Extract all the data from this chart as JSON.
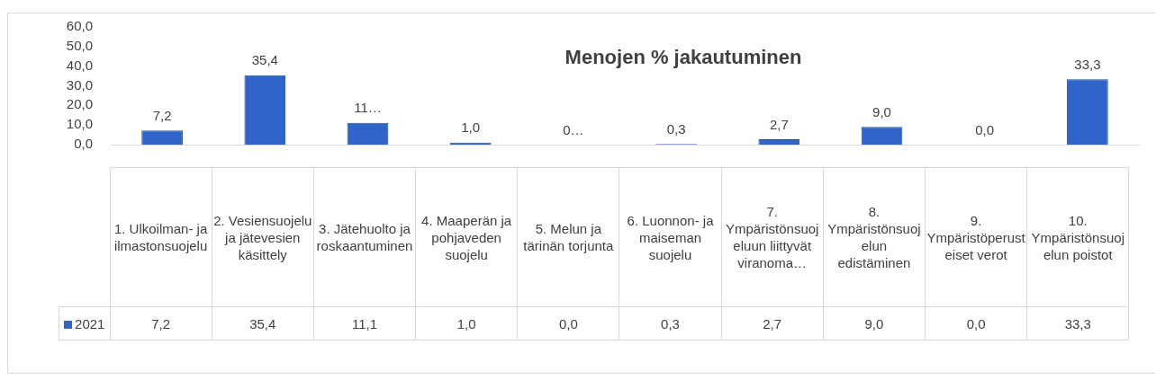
{
  "chart_data": {
    "type": "bar",
    "title": "Menojen % jakautuminen",
    "categories": [
      "1. Ulkoilman- ja ilmastonsuojelu",
      "2. Vesiensuojelu ja jätevesien käsittely",
      "3. Jätehuolto ja roskaantuminen",
      "4. Maaperän ja pohjaveden suojelu",
      "5. Melun ja tärinän torjunta",
      "6. Luonnon- ja maiseman suojelu",
      "7. Ympäristönsuojeluun liittyvät viranoma…",
      "8. Ympäristönsuojelun edistäminen",
      "9. Ympäristöperusteiset verot",
      "10. Ympäristönsuojelun poistot"
    ],
    "series": [
      {
        "name": "2021",
        "color": "#3064c8",
        "values": [
          7.2,
          35.4,
          11.1,
          1.0,
          0.0,
          0.3,
          2.7,
          9.0,
          0.0,
          33.3
        ],
        "value_labels": [
          "7,2",
          "35,4",
          "11…",
          "1,0",
          "0…",
          "0,3",
          "2,7",
          "9,0",
          "0,0",
          "33,3"
        ]
      }
    ],
    "ylim": [
      0,
      60
    ],
    "yticks": [
      {
        "value": 0,
        "label": "0,0"
      },
      {
        "value": 10,
        "label": "10,0"
      },
      {
        "value": 20,
        "label": "20,0"
      },
      {
        "value": 30,
        "label": "30,0"
      },
      {
        "value": 40,
        "label": "40,0"
      },
      {
        "value": 50,
        "label": "50,0"
      },
      {
        "value": 60,
        "label": "60,0"
      }
    ],
    "annotations": [
      "7,2",
      "35,4",
      "11,1",
      "1,0",
      "0,0",
      "0,3",
      "2,7",
      "9,0",
      "0,0",
      "33,3"
    ],
    "grid": false,
    "legend": "bottom left"
  }
}
